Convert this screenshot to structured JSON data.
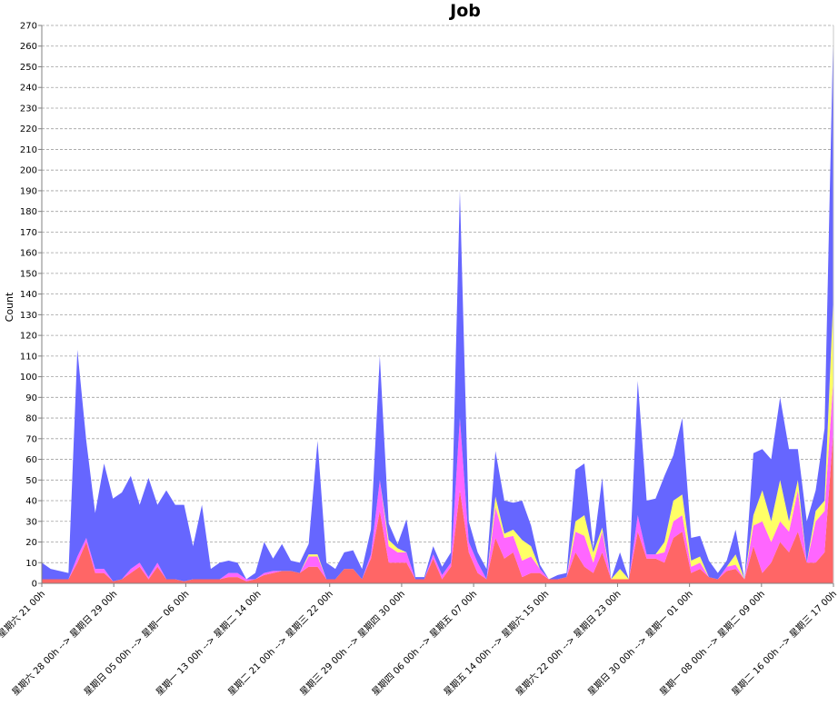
{
  "chart_data": {
    "type": "area",
    "stacked": true,
    "title": "Job",
    "ylabel": "Count",
    "xlabel": "",
    "ylim": [
      0,
      270
    ],
    "ytick_step": 10,
    "grid": true,
    "x_tick_labels": [
      "星期六 21 00h",
      "星期六 28 00h --> 星期日 29 00h",
      "星期日 05 00h --> 星期一 06 00h",
      "星期一 13 00h --> 星期二 14 00h",
      "星期二 21 00h --> 星期三 22 00h",
      "星期三 29 00h --> 星期四 30 00h",
      "星期四 06 00h --> 星期五 07 00h",
      "星期五 14 00h --> 星期六 15 00h",
      "星期六 22 00h --> 星期日 23 00h",
      "星期日 30 00h --> 星期一 01 00h",
      "星期一 08 00h --> 星期二 09 00h",
      "星期二 16 00h --> 星期三 17 00h"
    ],
    "series_colors": [
      "#ff6666",
      "#ff66ff",
      "#ffff66",
      "#6666ff"
    ],
    "series": [
      {
        "values": [
          2,
          2,
          2,
          2,
          10,
          20,
          5,
          5,
          1,
          2,
          5,
          8,
          2,
          8,
          2,
          2,
          1,
          2,
          2,
          2,
          2,
          3,
          3,
          1,
          2,
          4,
          5,
          6,
          6,
          5,
          8,
          8,
          2,
          2,
          7,
          7,
          2,
          12,
          35,
          10,
          10,
          10,
          2,
          2,
          12,
          2,
          8,
          45,
          15,
          5,
          2,
          22,
          12,
          15,
          3,
          5,
          5,
          2,
          2,
          3,
          15,
          8,
          5,
          15,
          2,
          2,
          2,
          25,
          12,
          12,
          10,
          22,
          25,
          5,
          7,
          3,
          2,
          6,
          7,
          2,
          18,
          5,
          10,
          20,
          15,
          25,
          10,
          10,
          15,
          75
        ]
      },
      {
        "values": [
          0,
          0,
          0,
          0,
          3,
          2,
          2,
          2,
          0,
          0,
          2,
          2,
          1,
          2,
          0,
          0,
          0,
          0,
          0,
          0,
          0,
          2,
          2,
          1,
          0,
          1,
          1,
          0,
          0,
          0,
          5,
          5,
          0,
          0,
          0,
          0,
          0,
          2,
          15,
          8,
          5,
          5,
          0,
          0,
          2,
          2,
          2,
          35,
          5,
          5,
          0,
          15,
          10,
          8,
          8,
          8,
          2,
          0,
          0,
          0,
          10,
          15,
          5,
          10,
          0,
          0,
          0,
          8,
          2,
          2,
          5,
          8,
          8,
          3,
          3,
          0,
          0,
          2,
          2,
          0,
          10,
          25,
          10,
          10,
          10,
          20,
          0,
          20,
          20,
          25
        ]
      },
      {
        "values": [
          0,
          0,
          0,
          0,
          0,
          0,
          0,
          0,
          0,
          0,
          0,
          0,
          0,
          0,
          0,
          0,
          0,
          0,
          0,
          0,
          0,
          0,
          0,
          0,
          0,
          0,
          0,
          0,
          0,
          0,
          1,
          1,
          0,
          0,
          0,
          0,
          0,
          0,
          0,
          3,
          2,
          0,
          0,
          0,
          0,
          0,
          0,
          0,
          0,
          0,
          0,
          5,
          2,
          3,
          10,
          5,
          0,
          0,
          0,
          0,
          5,
          10,
          5,
          2,
          0,
          5,
          0,
          0,
          0,
          0,
          5,
          10,
          10,
          3,
          3,
          0,
          0,
          0,
          5,
          0,
          5,
          15,
          10,
          20,
          5,
          5,
          0,
          5,
          5,
          40
        ]
      },
      {
        "values": [
          8,
          5,
          4,
          3,
          100,
          47,
          27,
          51,
          40,
          42,
          45,
          28,
          48,
          28,
          43,
          36,
          37,
          16,
          36,
          5,
          8,
          6,
          5,
          0,
          3,
          15,
          6,
          13,
          5,
          5,
          5,
          55,
          8,
          5,
          8,
          9,
          5,
          12,
          60,
          8,
          2,
          16,
          1,
          1,
          4,
          4,
          5,
          110,
          10,
          5,
          5,
          22,
          16,
          13,
          19,
          10,
          2,
          0,
          2,
          2,
          25,
          25,
          2,
          24,
          0,
          8,
          0,
          65,
          26,
          27,
          32,
          22,
          37,
          11,
          10,
          8,
          3,
          3,
          12,
          0,
          30,
          20,
          30,
          40,
          35,
          15,
          20,
          10,
          35,
          130
        ]
      }
    ]
  }
}
